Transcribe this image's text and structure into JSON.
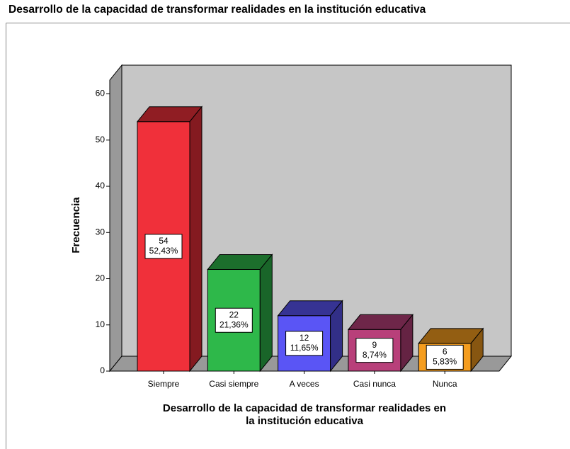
{
  "chart_data": {
    "type": "bar3d",
    "title": "Desarrollo de la capacidad de transformar realidades en la institución educativa",
    "xlabel": [
      "Desarrollo de la capacidad de transformar realidades en",
      "la institución educativa"
    ],
    "ylabel": "Frecuencia",
    "categories": [
      "Siempre",
      "Casi siempre",
      "A veces",
      "Casi nunca",
      "Nunca"
    ],
    "values": [
      54,
      22,
      12,
      9,
      6
    ],
    "percent_labels": [
      "52,43%",
      "21,36%",
      "11,65%",
      "8,74%",
      "5,83%"
    ],
    "colors": [
      "#f0303a",
      "#2eb84a",
      "#5a55f5",
      "#b8407a",
      "#f59d1e"
    ],
    "ylim": [
      0,
      63
    ],
    "yticks": [
      0,
      10,
      20,
      30,
      40,
      50,
      60
    ]
  }
}
